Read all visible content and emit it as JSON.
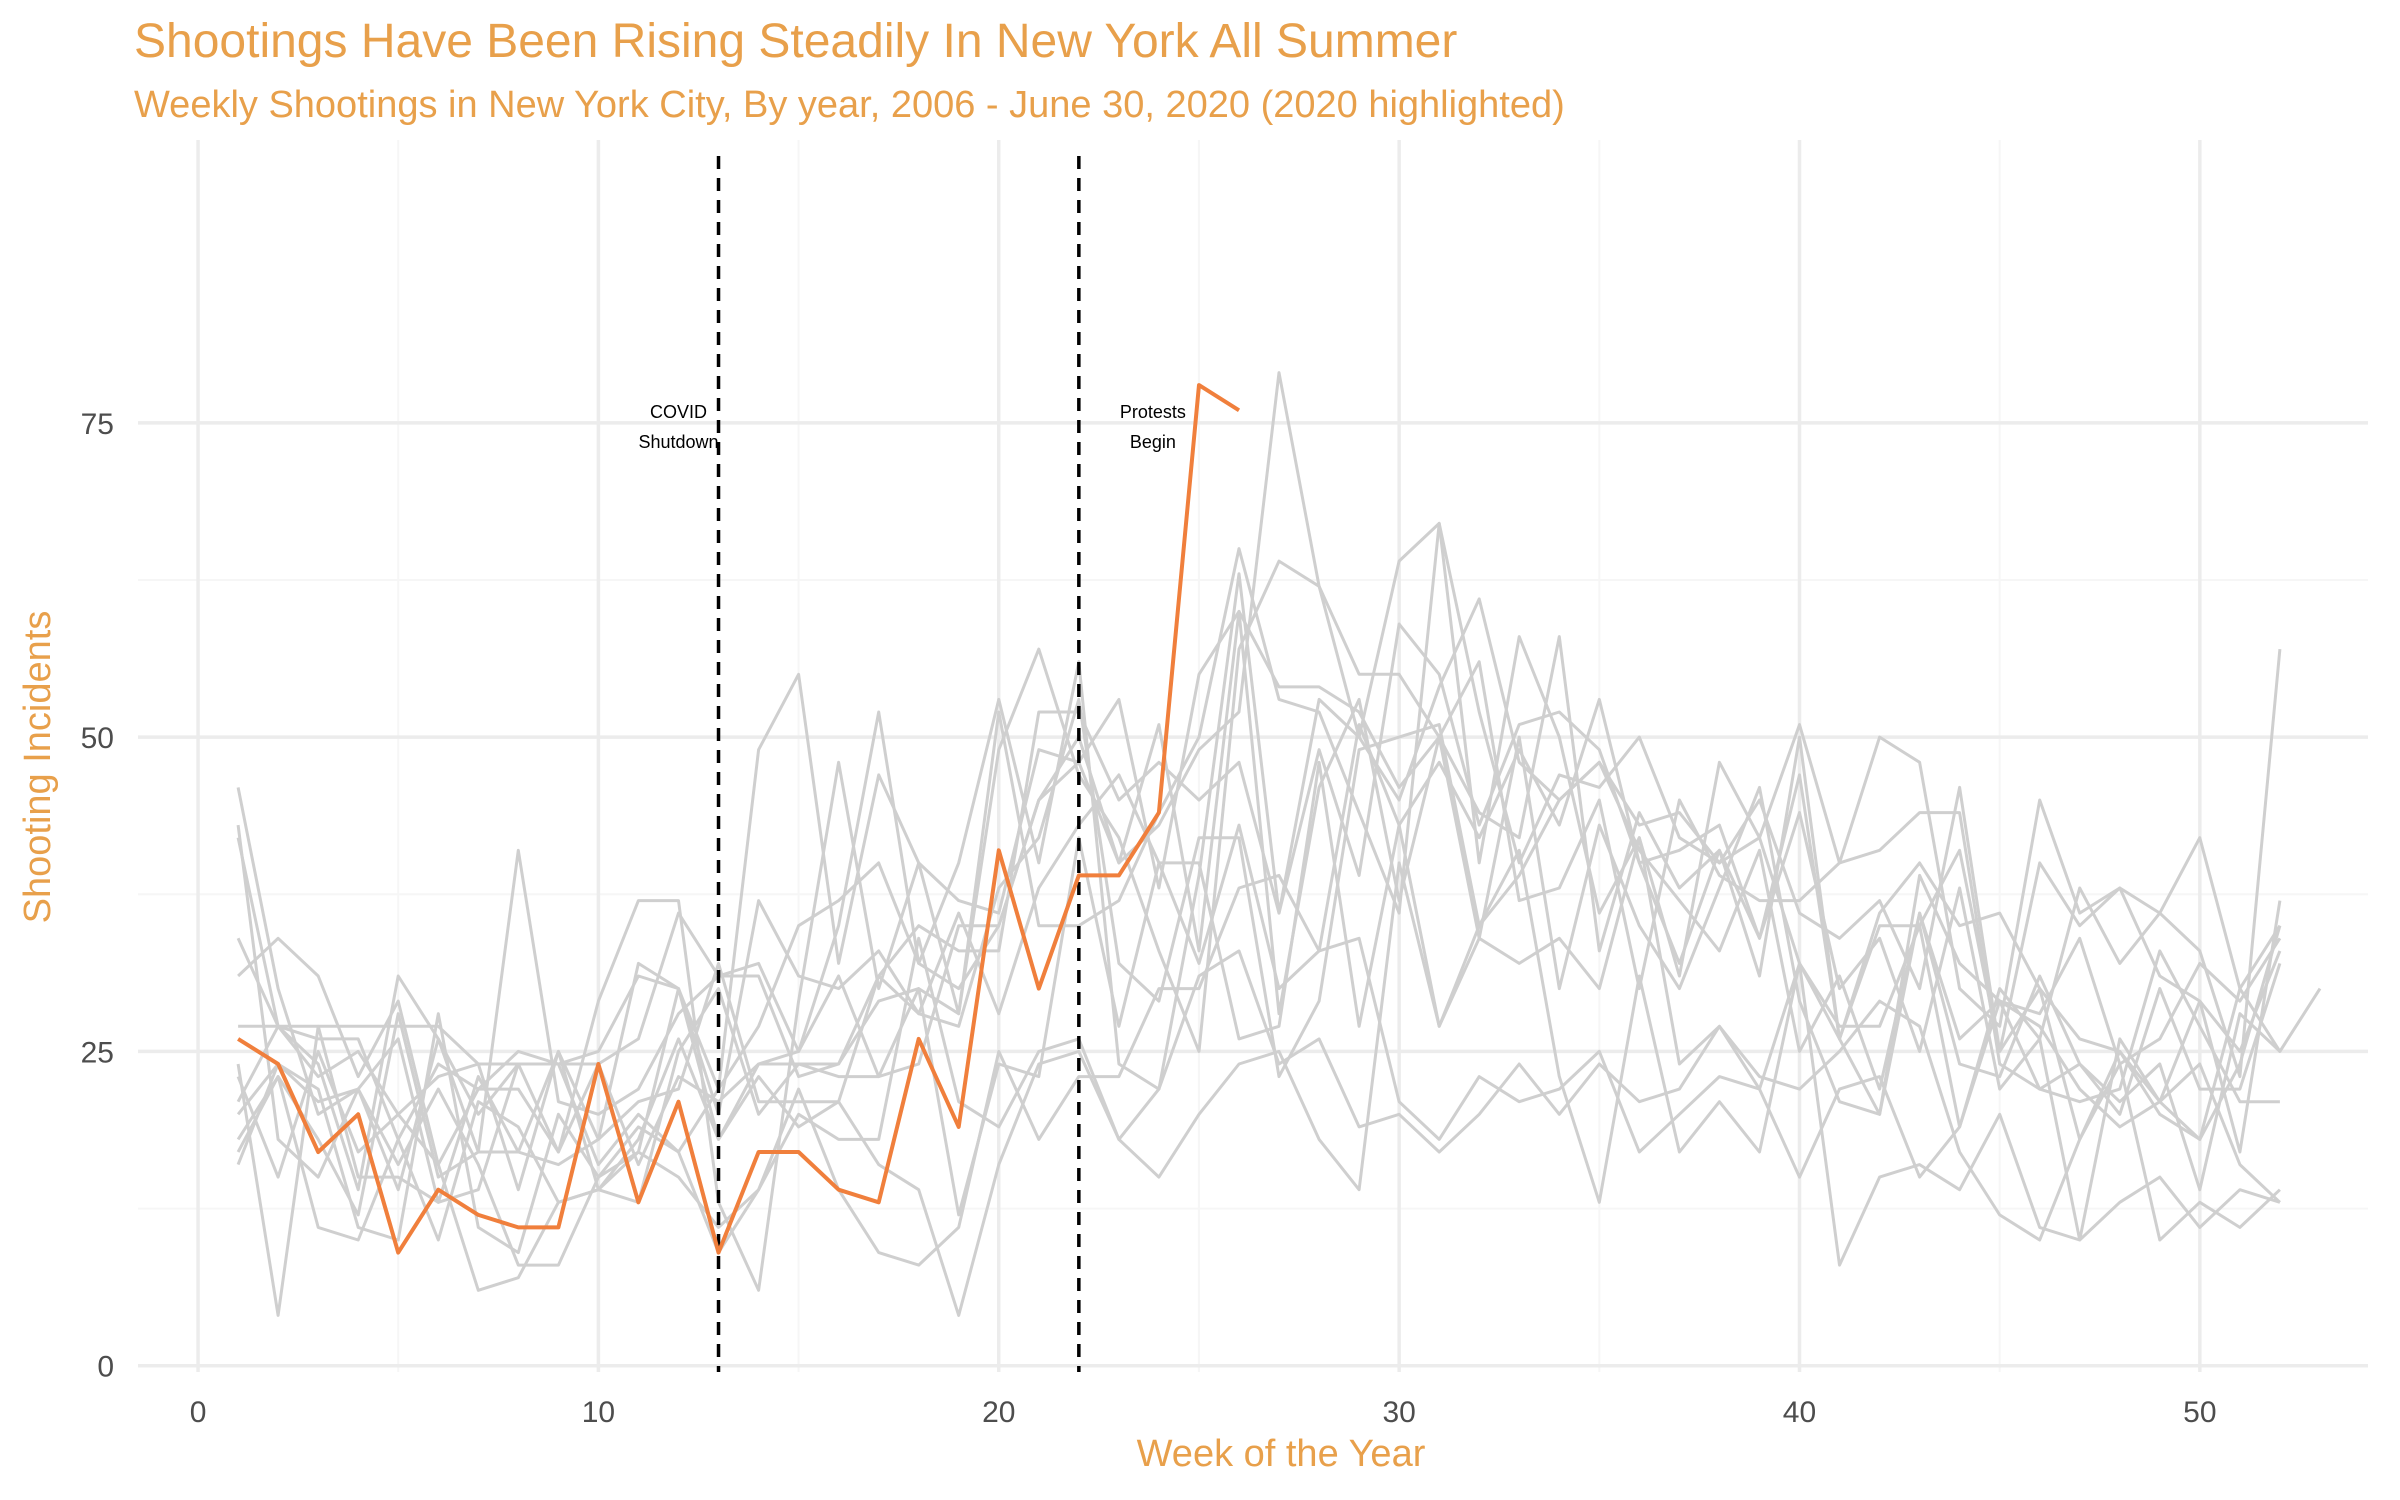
{
  "title": "Shootings Have Been Rising Steadily In New York All Summer",
  "subtitle": "Weekly Shootings in New York City, By year, 2006 - June 30, 2020 (2020 highlighted)",
  "colors": {
    "highlight": "#f07f3c",
    "background_series": "#cfcfcf",
    "title": "#e8a04b",
    "grid": "#ececec",
    "event_line": "#000000"
  },
  "chart_data": {
    "type": "line",
    "title": "Shootings Have Been Rising Steadily In New York All Summer",
    "subtitle": "Weekly Shootings in New York City, By year, 2006 - June 30, 2020 (2020 highlighted)",
    "xlabel": "Week of the Year",
    "ylabel": "Shooting Incidents",
    "xlim": [
      -1.5,
      54.2
    ],
    "ylim": [
      -0.5,
      97.5
    ],
    "x_ticks": [
      0,
      10,
      20,
      30,
      40,
      50
    ],
    "y_ticks": [
      0,
      25,
      50,
      75
    ],
    "grid": true,
    "legend": "none",
    "highlight_series": {
      "name": "2020",
      "x": [
        1,
        2,
        3,
        4,
        5,
        6,
        7,
        8,
        9,
        10,
        11,
        12,
        13,
        14,
        15,
        16,
        17,
        18,
        19,
        20,
        21,
        22,
        23,
        24,
        25,
        26
      ],
      "values": [
        26,
        24,
        17,
        20,
        9,
        14,
        12,
        11,
        11,
        24,
        13,
        21,
        9,
        17,
        17,
        14,
        13,
        26,
        19,
        41,
        30,
        39,
        39,
        44,
        78,
        76
      ]
    },
    "background_series": [
      {
        "x_start": 1,
        "values": [
          46,
          30,
          20,
          22,
          14,
          26,
          20,
          24,
          24,
          16,
          20,
          17,
          22,
          27,
          35,
          37,
          40,
          32,
          30,
          35,
          45,
          48,
          40,
          43,
          49,
          52,
          79,
          62,
          50,
          45,
          54,
          61,
          48,
          45,
          48,
          43,
          44,
          40,
          42,
          32,
          26,
          35,
          35,
          41,
          25,
          30,
          18,
          25,
          20,
          18,
          30,
          25,
          30
        ]
      },
      {
        "x_start": 1,
        "values": [
          43,
          18,
          15,
          22,
          26,
          13,
          14,
          24,
          17,
          29,
          37,
          37,
          13,
          6,
          29,
          48,
          30,
          40,
          28,
          52,
          35,
          35,
          37,
          44,
          50,
          65,
          53,
          52,
          44,
          36,
          67,
          52,
          40,
          47,
          46,
          50,
          42,
          40,
          45,
          36,
          34,
          37,
          30,
          46,
          25,
          40,
          35,
          38,
          31,
          29,
          17,
          37
        ]
      },
      {
        "x_start": 1,
        "values": [
          42,
          27,
          24,
          14,
          31,
          26,
          17,
          41,
          21,
          20,
          22,
          28,
          31,
          32,
          25,
          35,
          52,
          32,
          40,
          53,
          40,
          56,
          24,
          22,
          39,
          63,
          36,
          53,
          50,
          64,
          67,
          40,
          58,
          50,
          36,
          42,
          31,
          48,
          42,
          51,
          40,
          50,
          48,
          30,
          27,
          45,
          36,
          38,
          36,
          33,
          23,
          57
        ]
      },
      {
        "x_start": 1,
        "values": [
          34,
          27,
          26,
          26,
          18,
          24,
          22,
          25,
          24,
          25,
          31,
          30,
          22,
          49,
          55,
          32,
          47,
          40,
          37,
          36,
          49,
          48,
          53,
          38,
          55,
          60,
          54,
          54,
          52,
          46,
          50,
          44,
          42,
          58,
          33,
          44,
          38,
          41,
          34,
          44,
          30,
          34,
          25,
          38,
          22,
          26,
          38,
          32,
          36,
          42,
          30,
          35
        ]
      },
      {
        "x_start": 1,
        "values": [
          31,
          34,
          31,
          23,
          29,
          16,
          22,
          22,
          17,
          24,
          26,
          36,
          31,
          31,
          23,
          24,
          29,
          30,
          28,
          49,
          57,
          47,
          42,
          33,
          25,
          57,
          64,
          62,
          55,
          55,
          50,
          56,
          37,
          38,
          45,
          30,
          45,
          39,
          37,
          37,
          40,
          41,
          44,
          44,
          24,
          22,
          24,
          20,
          30,
          22,
          22,
          32
        ]
      },
      {
        "x_start": 1,
        "values": [
          27,
          27,
          27,
          27,
          27,
          27,
          24,
          24,
          24,
          24,
          16,
          23,
          21,
          24,
          24,
          24,
          31,
          35,
          33,
          33,
          52,
          52,
          45,
          48,
          45,
          48,
          36,
          49,
          39,
          59,
          55,
          43,
          51,
          52,
          49,
          40,
          41,
          43,
          34,
          47,
          26,
          36,
          40,
          35,
          36,
          30,
          26,
          25,
          21,
          29,
          25,
          33
        ]
      },
      {
        "x_start": 1,
        "values": [
          21,
          27,
          23,
          25,
          20,
          23,
          24,
          14,
          25,
          18,
          21,
          22,
          32,
          21,
          21,
          21,
          31,
          28,
          36,
          28,
          38,
          43,
          47,
          40,
          32,
          43,
          30,
          33,
          51,
          43,
          48,
          42,
          49,
          43,
          53,
          40,
          32,
          41,
          31,
          50,
          26,
          20,
          39,
          32,
          29,
          28,
          34,
          24,
          26,
          32,
          29,
          34
        ]
      },
      {
        "x_start": 1,
        "values": [
          24,
          4,
          27,
          15,
          15,
          13,
          23,
          17,
          16,
          18,
          32,
          30,
          18,
          24,
          25,
          31,
          23,
          24,
          35,
          35,
          45,
          50,
          40,
          51,
          33,
          60,
          28,
          46,
          53,
          37,
          50,
          34,
          50,
          30,
          43,
          35,
          30,
          38,
          46,
          29,
          21,
          20,
          36,
          26,
          29,
          27,
          22,
          19,
          21,
          18,
          24,
          35
        ]
      },
      {
        "x_start": 1,
        "values": [
          20,
          24,
          21,
          22,
          16,
          22,
          16,
          8,
          8,
          15,
          17,
          30,
          20,
          37,
          31,
          30,
          33,
          28,
          27,
          38,
          42,
          53,
          32,
          29,
          42,
          42,
          23,
          29,
          49,
          50,
          51,
          35,
          39,
          45,
          48,
          41,
          37,
          33,
          41,
          25,
          31,
          22,
          36,
          24,
          23,
          31,
          24,
          21,
          24,
          14,
          28,
          25
        ]
      },
      {
        "x_start": 1,
        "values": [
          17,
          23,
          18,
          12,
          28,
          15,
          17,
          17,
          25,
          14,
          13,
          25,
          30,
          20,
          24,
          23,
          23,
          30,
          12,
          24,
          23,
          42,
          27,
          40,
          40,
          26,
          27,
          48,
          27,
          43,
          27,
          34,
          32,
          34,
          30,
          42,
          24,
          27,
          22,
          32,
          27,
          27,
          35,
          19,
          29,
          22,
          21,
          22,
          33,
          27,
          21,
          21
        ]
      },
      {
        "x_start": 1,
        "values": [
          16,
          24,
          22,
          11,
          10,
          28,
          11,
          9,
          20,
          15,
          19,
          17,
          9,
          14,
          22,
          14,
          9,
          8,
          11,
          25,
          18,
          23,
          23,
          30,
          30,
          38,
          39,
          33,
          34,
          21,
          18,
          23,
          21,
          22,
          25,
          17,
          20,
          23,
          22,
          15,
          22,
          23,
          15,
          19,
          30,
          26,
          10,
          26,
          21,
          24,
          16,
          13
        ]
      },
      {
        "x_start": 1,
        "values": [
          18,
          23,
          11,
          10,
          18,
          10,
          21,
          19,
          13,
          14,
          17,
          15,
          11,
          14,
          20,
          18,
          18,
          34,
          21,
          19,
          25,
          26,
          18,
          22,
          31,
          33,
          24,
          26,
          19,
          20,
          17,
          20,
          24,
          20,
          24,
          21,
          22,
          27,
          23,
          22,
          25,
          29,
          27,
          17,
          12,
          10,
          18,
          24,
          10,
          13,
          11,
          14
        ]
      },
      {
        "x_start": 1,
        "values": [
          23,
          15,
          25,
          17,
          20,
          16,
          6,
          7,
          13,
          14,
          18,
          26,
          18,
          23,
          19,
          21,
          16,
          14,
          4,
          16,
          24,
          25,
          18,
          15,
          20,
          24,
          25,
          18,
          14,
          40,
          27,
          35,
          41,
          23,
          13,
          31,
          17,
          21,
          17,
          32,
          8,
          15,
          16,
          14,
          20,
          11,
          10,
          13,
          15,
          11,
          14,
          13
        ]
      }
    ],
    "annotations": [
      {
        "x": 13,
        "label_lines": [
          "COVID",
          "Shutdown"
        ]
      },
      {
        "x": 22,
        "label_lines": [
          "Protests",
          "Begin"
        ]
      }
    ]
  }
}
